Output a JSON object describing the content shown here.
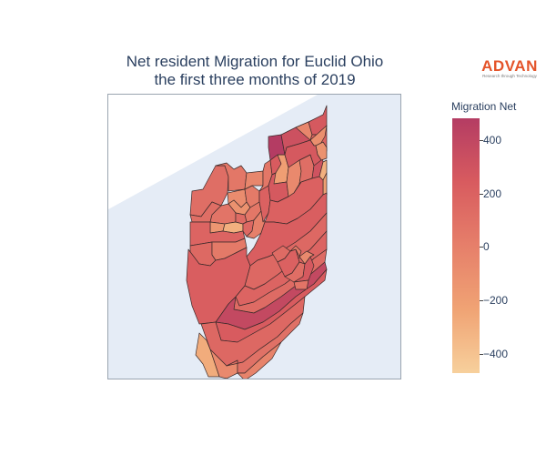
{
  "title": {
    "line1": "Net resident Migration for Euclid Ohio",
    "line2": "the first three months of 2019"
  },
  "logo": {
    "word": "ADVAN",
    "tagline": "Research through Technology",
    "color": "#e4542a"
  },
  "colorbar": {
    "title": "Migration Net",
    "colorscale": [
      "#f7d09c",
      "#f0a374",
      "#e67f6a",
      "#d85b5f",
      "#b43c63"
    ],
    "range": [
      -470,
      480
    ],
    "ticks": [
      {
        "label": "400",
        "value": 400
      },
      {
        "label": "200",
        "value": 200
      },
      {
        "label": "0",
        "value": 0
      },
      {
        "label": "−200",
        "value": -200
      },
      {
        "label": "−400",
        "value": -400
      }
    ]
  },
  "map": {
    "land_color": "#e5ecf6",
    "water_color": "#ffffff",
    "region_values": [
      120,
      60,
      -80,
      -120,
      40,
      -40,
      120,
      80,
      -150,
      -300,
      180,
      150,
      40,
      60,
      140,
      160,
      0,
      200,
      60,
      240,
      -200,
      260,
      -60,
      120,
      300,
      480,
      320,
      -40,
      260,
      180,
      -100,
      -120,
      260,
      -300,
      -220,
      200,
      220,
      160,
      180,
      140,
      380,
      220,
      140,
      200,
      120,
      260,
      -60,
      40,
      80,
      240,
      160,
      -60,
      100,
      -20,
      -280
    ]
  }
}
